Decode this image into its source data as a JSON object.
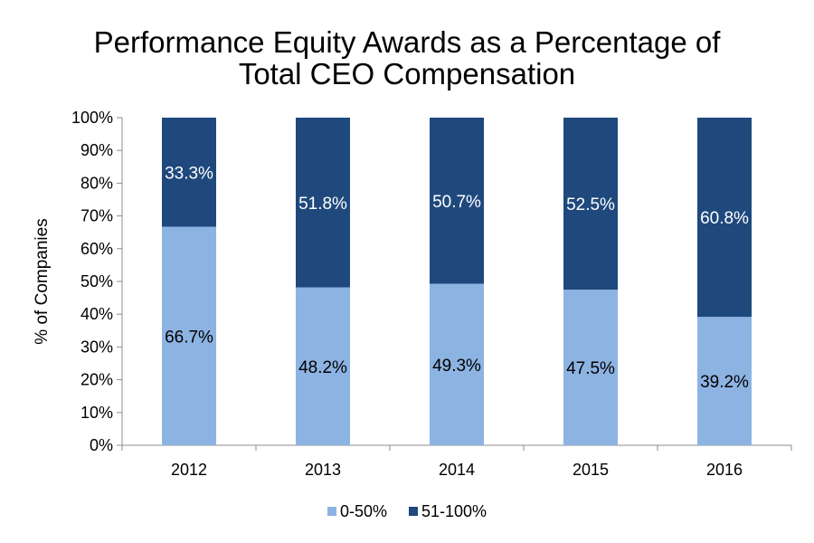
{
  "chart_data": {
    "type": "bar",
    "stacked": true,
    "title_lines": [
      "Performance Equity Awards as a Percentage of",
      "Total CEO Compensation"
    ],
    "xlabel": "",
    "ylabel": "% of Companies",
    "ylim": [
      0,
      100
    ],
    "yticks": [
      "0%",
      "10%",
      "20%",
      "30%",
      "40%",
      "50%",
      "60%",
      "70%",
      "80%",
      "90%",
      "100%"
    ],
    "categories": [
      "2012",
      "2013",
      "2014",
      "2015",
      "2016"
    ],
    "series": [
      {
        "name": "0-50%",
        "color": "#8db3e2",
        "label_color": "#000000",
        "values": [
          66.7,
          48.2,
          49.3,
          47.5,
          39.2
        ],
        "labels": [
          "66.7%",
          "48.2%",
          "49.3%",
          "47.5%",
          "39.2%"
        ]
      },
      {
        "name": "51-100%",
        "color": "#1f497d",
        "label_color": "#ffffff",
        "values": [
          33.3,
          51.8,
          50.7,
          52.5,
          60.8
        ],
        "labels": [
          "33.3%",
          "51.8%",
          "50.7%",
          "52.5%",
          "60.8%"
        ]
      }
    ],
    "grid": false,
    "legend_position": "bottom"
  }
}
